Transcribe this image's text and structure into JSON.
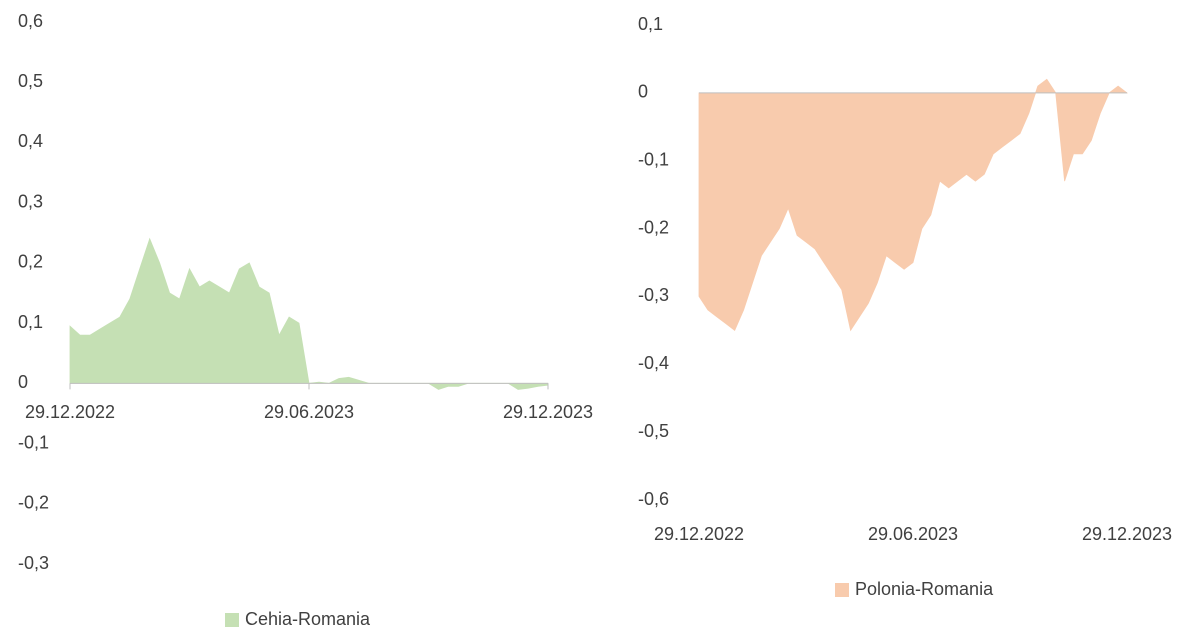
{
  "chart_data": [
    {
      "type": "area",
      "series": [
        {
          "name": "Cehia-Romania",
          "color": "#c5e0b4",
          "values": [
            0.095,
            0.08,
            0.08,
            0.09,
            0.1,
            0.11,
            0.14,
            0.19,
            0.24,
            0.2,
            0.15,
            0.14,
            0.19,
            0.16,
            0.17,
            0.16,
            0.15,
            0.19,
            0.2,
            0.16,
            0.15,
            0.08,
            0.11,
            0.1,
            0,
            0.002,
            0,
            0.008,
            0.01,
            0.005,
            0,
            0,
            0,
            0,
            0,
            0,
            0,
            -0.01,
            -0.005,
            -0.005,
            0,
            0,
            0,
            0,
            0,
            -0.01,
            -0.008,
            -0.005,
            -0.003
          ]
        }
      ],
      "xlim": [
        0,
        48
      ],
      "xticks": [
        {
          "value": 0,
          "label": "29.12.2022"
        },
        {
          "value": 24,
          "label": "29.06.2023"
        },
        {
          "value": 48,
          "label": "29.12.2023"
        }
      ],
      "ylim": [
        -0.3,
        0.6
      ],
      "yticks": [
        {
          "value": 0.6,
          "label": "0,6"
        },
        {
          "value": 0.5,
          "label": "0,5"
        },
        {
          "value": 0.4,
          "label": "0,4"
        },
        {
          "value": 0.3,
          "label": "0,3"
        },
        {
          "value": 0.2,
          "label": "0,2"
        },
        {
          "value": 0.1,
          "label": "0,1"
        },
        0,
        {
          "value": -0.1,
          "label": "-0,1"
        },
        {
          "value": -0.2,
          "label": "-0,2"
        },
        {
          "value": -0.3,
          "label": "-0,3"
        }
      ],
      "legend": "bottom"
    },
    {
      "type": "area",
      "series": [
        {
          "name": "Polonia-Romania",
          "color": "#f8cbad",
          "values": [
            -0.3,
            -0.32,
            -0.33,
            -0.34,
            -0.35,
            -0.32,
            -0.28,
            -0.24,
            -0.22,
            -0.2,
            -0.17,
            -0.21,
            -0.22,
            -0.23,
            -0.25,
            -0.27,
            -0.29,
            -0.35,
            -0.33,
            -0.31,
            -0.28,
            -0.24,
            -0.25,
            -0.26,
            -0.25,
            -0.2,
            -0.18,
            -0.13,
            -0.14,
            -0.13,
            -0.12,
            -0.13,
            -0.12,
            -0.09,
            -0.08,
            -0.07,
            -0.06,
            -0.03,
            0.01,
            0.02,
            0,
            -0.13,
            -0.09,
            -0.09,
            -0.07,
            -0.03,
            0,
            0.01,
            0
          ]
        }
      ],
      "xlim": [
        0,
        48
      ],
      "xticks": [
        {
          "value": 0,
          "label": "29.12.2022"
        },
        {
          "value": 24,
          "label": "29.06.2023"
        },
        {
          "value": 48,
          "label": "29.12.2023"
        }
      ],
      "ylim": [
        -0.6,
        0.1
      ],
      "yticks": [
        {
          "value": 0.1,
          "label": "0,1"
        },
        0,
        {
          "value": -0.1,
          "label": "-0,1"
        },
        {
          "value": -0.2,
          "label": "-0,2"
        },
        {
          "value": -0.3,
          "label": "-0,3"
        },
        {
          "value": -0.4,
          "label": "-0,4"
        },
        {
          "value": -0.5,
          "label": "-0,5"
        },
        {
          "value": -0.6,
          "label": "-0,6"
        }
      ],
      "legend": "bottom"
    }
  ]
}
